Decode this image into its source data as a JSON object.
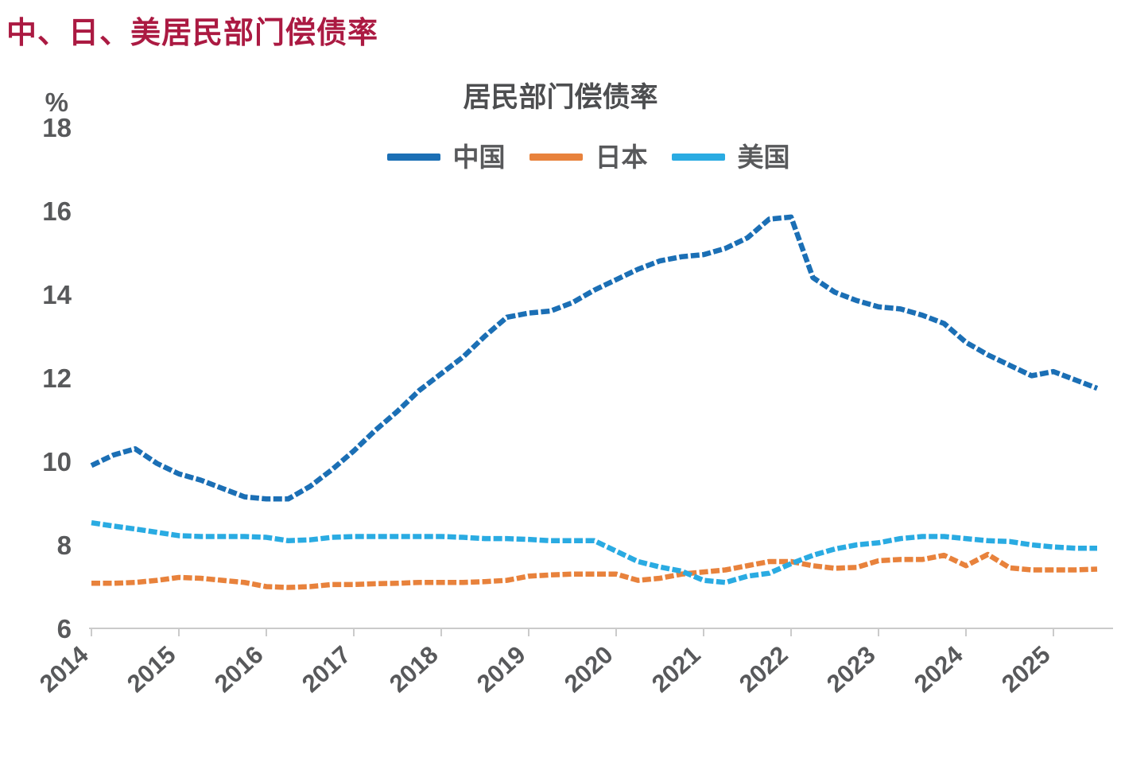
{
  "page": {
    "title": "中、日、美居民部门偿债率",
    "title_color": "#AB1A42"
  },
  "chart_data": {
    "type": "line",
    "title": "居民部门偿债率",
    "unit_label": "%",
    "xlabel": "",
    "ylabel": "%",
    "ylim": [
      6,
      18
    ],
    "y_ticks": [
      6,
      8,
      10,
      12,
      14,
      16,
      18
    ],
    "x_tick_labels": [
      "2014",
      "2015",
      "2016",
      "2017",
      "2018",
      "2019",
      "2020",
      "2021",
      "2022",
      "2023",
      "2024",
      "2025"
    ],
    "x_frequency": "quarterly",
    "x_range": "2014Q1-2025Q3",
    "grid": false,
    "legend_position": "top",
    "axis_color": "#cbcbcb",
    "tick_text_color": "#58595b",
    "series": [
      {
        "key": "china",
        "name": "中国",
        "color": "#1B6FB5",
        "values": [
          9.9,
          10.15,
          10.3,
          9.95,
          9.7,
          9.55,
          9.35,
          9.15,
          9.1,
          9.1,
          9.4,
          9.8,
          10.25,
          10.75,
          11.2,
          11.7,
          12.1,
          12.5,
          13.0,
          13.45,
          13.55,
          13.6,
          13.8,
          14.1,
          14.35,
          14.6,
          14.8,
          14.9,
          14.95,
          15.1,
          15.35,
          15.8,
          15.85,
          14.4,
          14.05,
          13.85,
          13.7,
          13.65,
          13.5,
          13.3,
          12.85,
          12.55,
          12.3,
          12.05,
          12.15,
          11.95,
          11.75
        ]
      },
      {
        "key": "japan",
        "name": "日本",
        "color": "#E8823C",
        "values": [
          7.08,
          7.08,
          7.1,
          7.15,
          7.22,
          7.2,
          7.15,
          7.1,
          7.0,
          6.98,
          7.0,
          7.05,
          7.05,
          7.07,
          7.08,
          7.1,
          7.1,
          7.1,
          7.12,
          7.15,
          7.25,
          7.28,
          7.3,
          7.3,
          7.3,
          7.15,
          7.2,
          7.3,
          7.35,
          7.4,
          7.5,
          7.6,
          7.6,
          7.5,
          7.44,
          7.46,
          7.62,
          7.65,
          7.65,
          7.75,
          7.5,
          7.77,
          7.45,
          7.4,
          7.4,
          7.4,
          7.42
        ]
      },
      {
        "key": "us",
        "name": "美国",
        "color": "#2AABE2",
        "values": [
          8.53,
          8.45,
          8.38,
          8.3,
          8.22,
          8.2,
          8.2,
          8.2,
          8.18,
          8.1,
          8.12,
          8.18,
          8.2,
          8.2,
          8.2,
          8.2,
          8.2,
          8.18,
          8.15,
          8.15,
          8.13,
          8.1,
          8.1,
          8.1,
          7.85,
          7.6,
          7.47,
          7.37,
          7.15,
          7.1,
          7.25,
          7.32,
          7.55,
          7.75,
          7.9,
          8.0,
          8.05,
          8.15,
          8.2,
          8.2,
          8.15,
          8.1,
          8.08,
          8.0,
          7.95,
          7.92,
          7.92
        ]
      }
    ]
  }
}
